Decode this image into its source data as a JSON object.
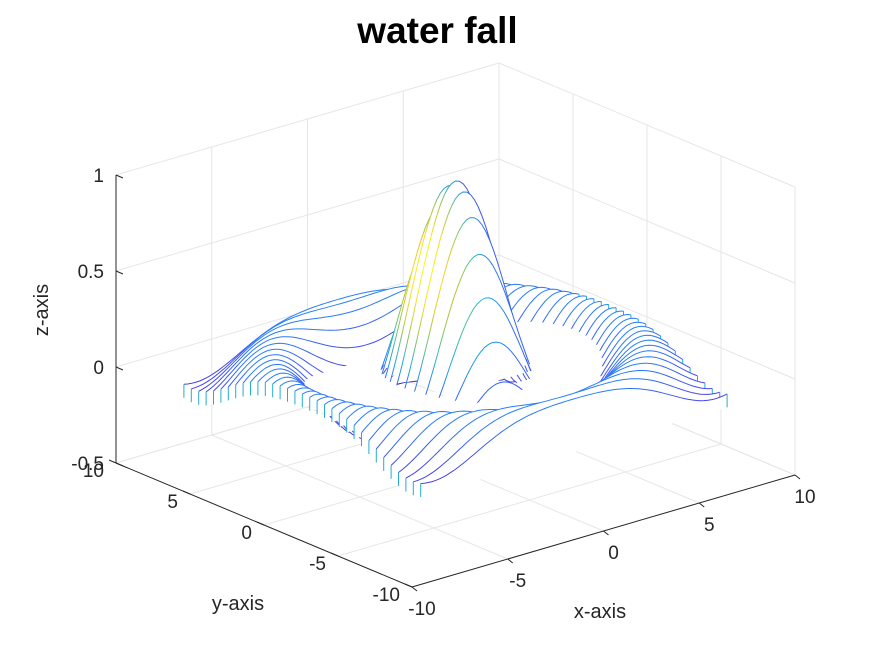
{
  "chart_data": {
    "type": "waterfall",
    "title": "water fall",
    "xlabel": "x-axis",
    "ylabel": "y-axis",
    "zlabel": "z-axis",
    "xlim": [
      -10,
      10
    ],
    "ylim": [
      -10,
      10
    ],
    "zlim": [
      -0.5,
      1
    ],
    "xticks": [
      -10,
      -5,
      0,
      5,
      10
    ],
    "yticks": [
      -10,
      -5,
      0,
      5,
      10
    ],
    "zticks": [
      -0.5,
      0,
      0.5,
      1
    ],
    "xtick_labels": [
      "-10",
      "-5",
      "0",
      "5",
      "10"
    ],
    "ytick_labels": [
      "-10",
      "-5",
      "0",
      "5",
      "10"
    ],
    "ztick_labels": [
      "-0.5",
      "0",
      "0.5",
      "1"
    ],
    "grid": true,
    "colormap": [
      "#3e26a8",
      "#4743f0",
      "#2d75fb",
      "#1ca5df",
      "#2dbeb5",
      "#81cc59",
      "#d9b929",
      "#f8db24",
      "#f9fb15"
    ],
    "curve_x_range": [
      -8,
      8
    ],
    "curve_y_range": [
      -8,
      8
    ],
    "curve_count": 33,
    "points_per_curve": 81,
    "surface_function": "z = sin(R)/R, R = sqrt(x^2 + y^2)",
    "surface_peak": {
      "x": 0,
      "y": 0,
      "z": 1
    }
  }
}
